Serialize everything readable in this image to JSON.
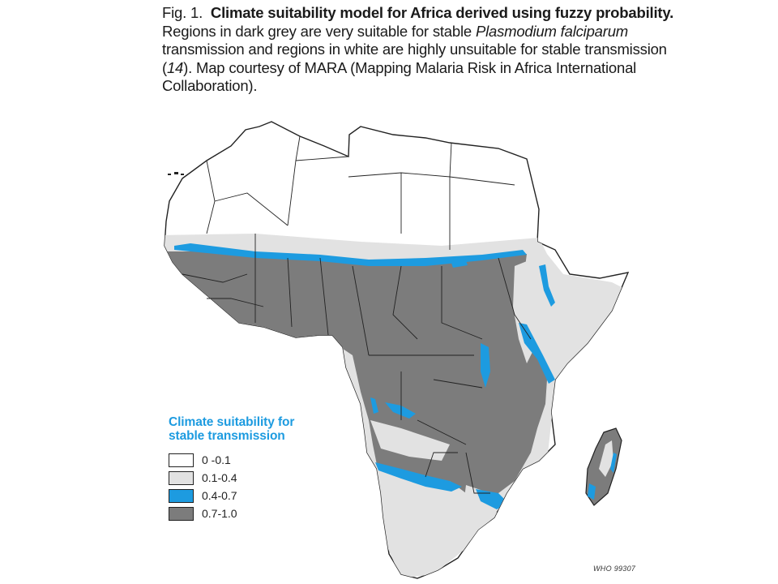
{
  "caption": {
    "fig_label": "Fig. 1.",
    "title": "Climate suitability model for Africa derived using fuzzy probability.",
    "body_1": "Regions in dark grey are very suitable for stable",
    "italic_1": "Plasmodium falciparum",
    "body_2": "transmission and regions in white are highly unsuitable for stable transmission (",
    "ref": "14",
    "body_3": "). Map courtesy of MARA (Mapping Malaria Risk in Africa International Collaboration)."
  },
  "legend": {
    "title": "Climate suitability for stable transmission",
    "items": [
      {
        "label": "0 -0.1",
        "color": "#ffffff"
      },
      {
        "label": "0.1-0.4",
        "color": "#e2e2e2"
      },
      {
        "label": "0.4-0.7",
        "color": "#1d9be0"
      },
      {
        "label": "0.7-1.0",
        "color": "#7c7c7c"
      }
    ]
  },
  "credit": "WHO 99307",
  "colors": {
    "border": "#222222",
    "unsuitable": "#ffffff",
    "low": "#e2e2e2",
    "medium": "#1d9be0",
    "high": "#7c7c7c"
  }
}
